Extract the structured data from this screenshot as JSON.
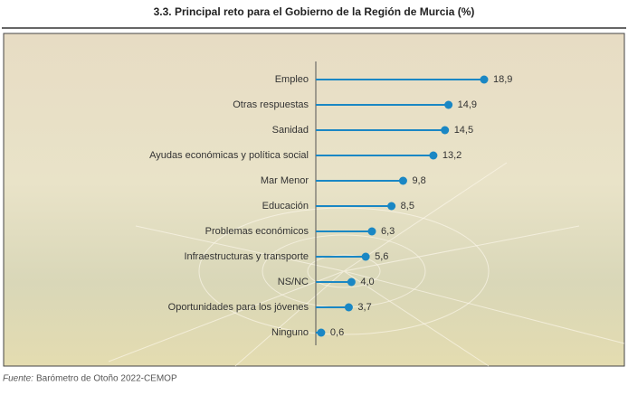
{
  "chart_data": {
    "type": "lollipop",
    "title": "3.3. Principal reto para el Gobierno de la Región de Murcia (%)",
    "categories": [
      "Empleo",
      "Otras respuestas",
      "Sanidad",
      "Ayudas económicas y política social",
      "Mar Menor",
      "Educación",
      "Problemas económicos",
      "Infraestructuras y transporte",
      "NS/NC",
      "Oportunidades para los jóvenes",
      "Ninguno"
    ],
    "values": [
      18.9,
      14.9,
      14.5,
      13.2,
      9.8,
      8.5,
      6.3,
      5.6,
      4.0,
      3.7,
      0.6
    ],
    "value_labels": [
      "18,9",
      "14,9",
      "14,5",
      "13,2",
      "9,8",
      "8,5",
      "6,3",
      "5,6",
      "4,0",
      "3,7",
      "0,6"
    ],
    "color": "#1a87c4",
    "source_label": "Fuente:",
    "source": "Barómetro de Otoño 2022-CEMOP"
  }
}
